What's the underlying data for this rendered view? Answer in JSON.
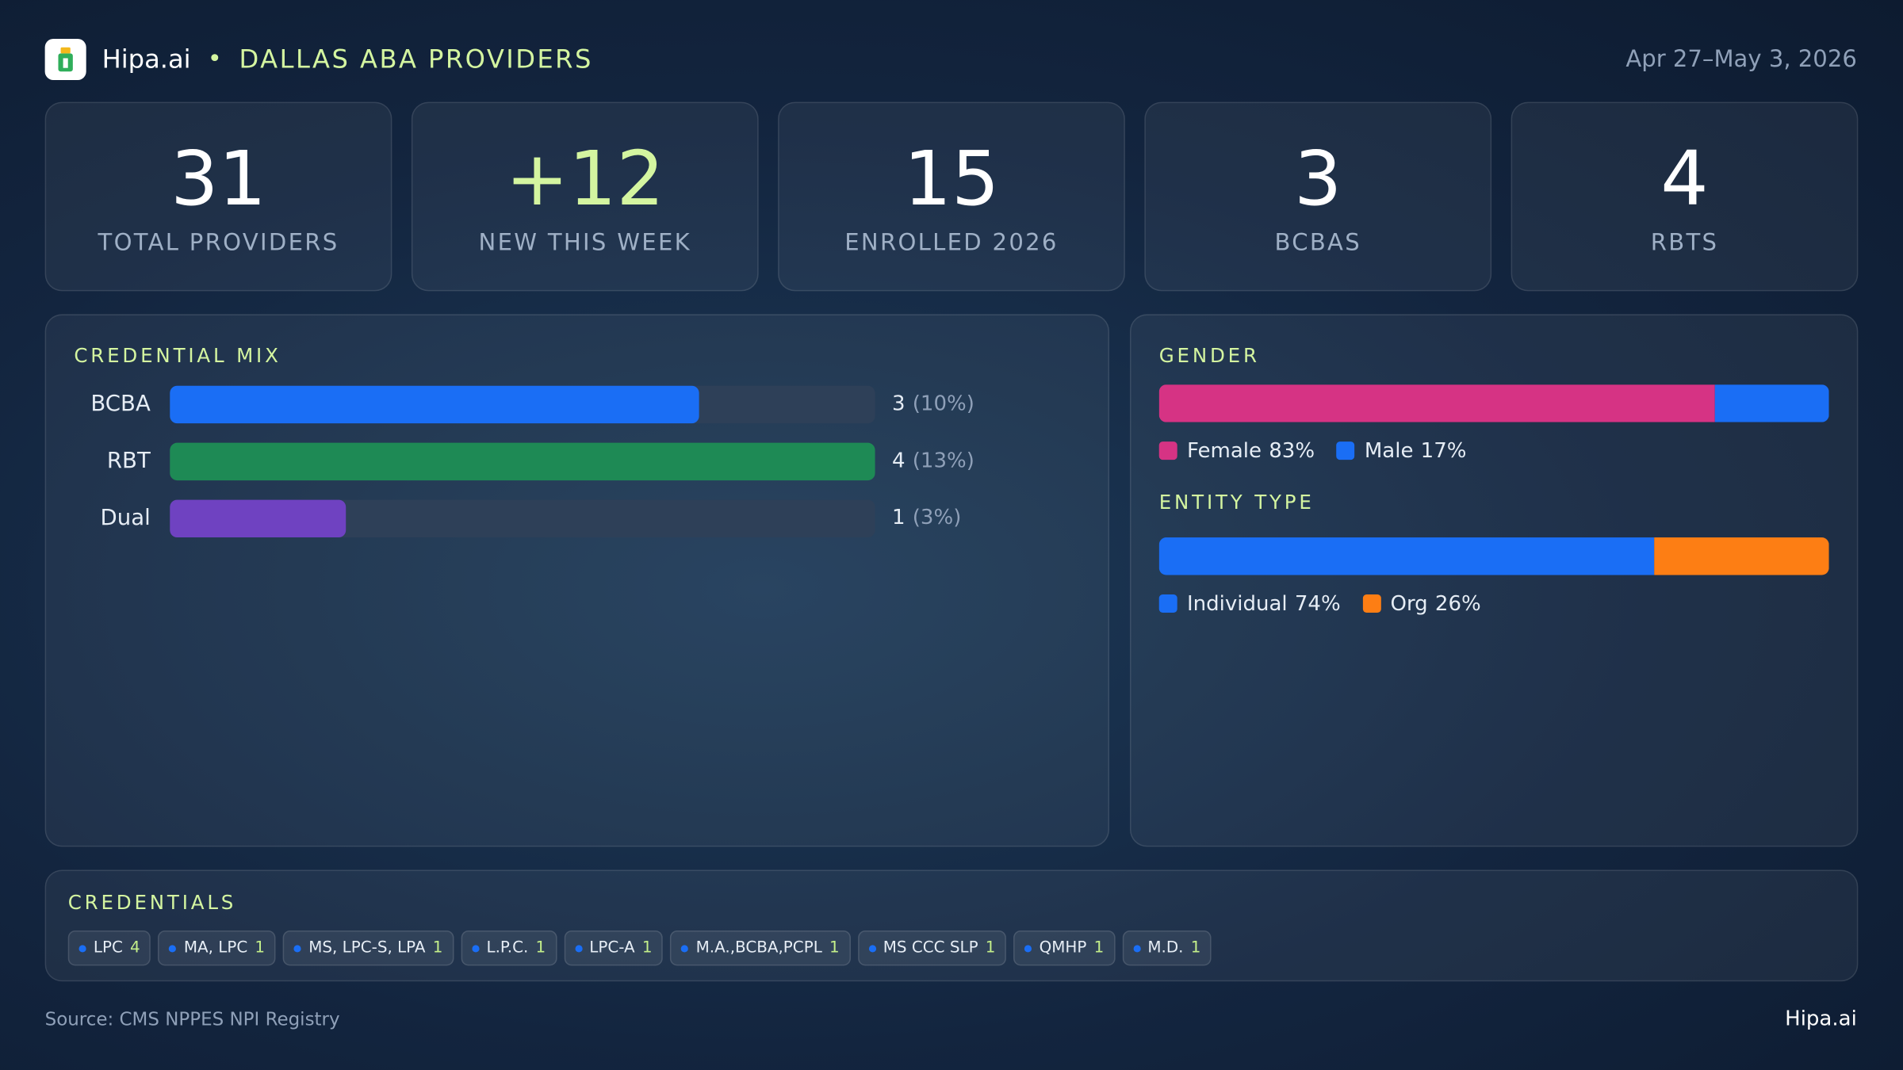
{
  "header": {
    "brand": "Hipa.ai",
    "separator": "•",
    "title": "DALLAS ABA PROVIDERS",
    "date_range": "Apr 27–May 3, 2026"
  },
  "kpis": [
    {
      "value": "31",
      "label": "TOTAL PROVIDERS",
      "color": "#ffffff"
    },
    {
      "value": "+12",
      "label": "NEW THIS WEEK",
      "color": "#d4f5a0"
    },
    {
      "value": "15",
      "label": "ENROLLED 2026",
      "color": "#ffffff"
    },
    {
      "value": "3",
      "label": "BCBAS",
      "color": "#ffffff"
    },
    {
      "value": "4",
      "label": "RBTS",
      "color": "#ffffff"
    }
  ],
  "credential_mix": {
    "title": "CREDENTIAL MIX",
    "rows": [
      {
        "label": "BCBA",
        "count": 3,
        "share": "(10%)",
        "color": "#1a6ef5"
      },
      {
        "label": "RBT",
        "count": 4,
        "share": "(13%)",
        "color": "#1e8a55"
      },
      {
        "label": "Dual",
        "count": 1,
        "share": "(3%)",
        "color": "#6f42c1"
      }
    ]
  },
  "gender": {
    "title": "GENDER",
    "segments": [
      {
        "name": "Female",
        "value": 83,
        "value_label": "83%",
        "color": "#d63384"
      },
      {
        "name": "Male",
        "value": 17,
        "value_label": "17%",
        "color": "#1a6ef5"
      }
    ]
  },
  "entity_type": {
    "title": "ENTITY TYPE",
    "segments": [
      {
        "name": "Individual",
        "value": 74,
        "value_label": "74%",
        "color": "#1a6ef5"
      },
      {
        "name": "Org",
        "value": 26,
        "value_label": "26%",
        "color": "#fd7e14"
      }
    ]
  },
  "credentials": {
    "title": "CREDENTIALS",
    "chips": [
      {
        "name": "LPC",
        "count": 4
      },
      {
        "name": "MA, LPC",
        "count": 1
      },
      {
        "name": "MS, LPC-S, LPA",
        "count": 1
      },
      {
        "name": "L.P.C.",
        "count": 1
      },
      {
        "name": "LPC-A",
        "count": 1
      },
      {
        "name": "M.A.,BCBA,PCPL",
        "count": 1
      },
      {
        "name": "MS CCC SLP",
        "count": 1
      },
      {
        "name": "QMHP",
        "count": 1
      },
      {
        "name": "M.D.",
        "count": 1
      }
    ]
  },
  "footer": {
    "source": "Source: CMS NPPES NPI Registry",
    "brand": "Hipa.ai"
  }
}
